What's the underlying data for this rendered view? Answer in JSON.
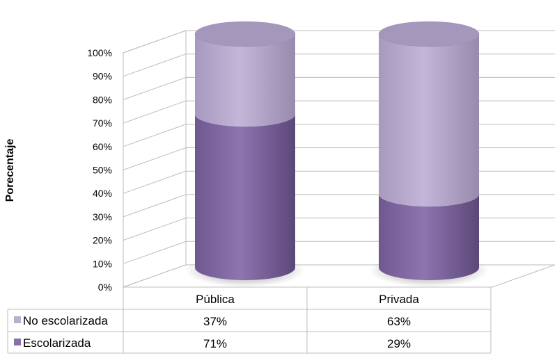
{
  "chart_data": {
    "type": "bar",
    "subtype": "stacked-100-3d-cylinder",
    "title": "",
    "xlabel": "",
    "ylabel": "Porecentaje",
    "ylim": [
      0,
      100
    ],
    "yticks": [
      "0%",
      "10%",
      "20%",
      "30%",
      "40%",
      "50%",
      "60%",
      "70%",
      "80%",
      "90%",
      "100%"
    ],
    "categories": [
      "Pública",
      "Privada"
    ],
    "series": [
      {
        "name": "Escolarizada",
        "values": [
          71,
          29
        ],
        "labels": [
          "71%",
          "29%"
        ],
        "color": "#8A70AA"
      },
      {
        "name": "No escolarizada",
        "values": [
          37,
          63
        ],
        "labels": [
          "37%",
          "63%"
        ],
        "color": "#BBAED1"
      }
    ],
    "grid": true,
    "legend": "data-table-below"
  }
}
